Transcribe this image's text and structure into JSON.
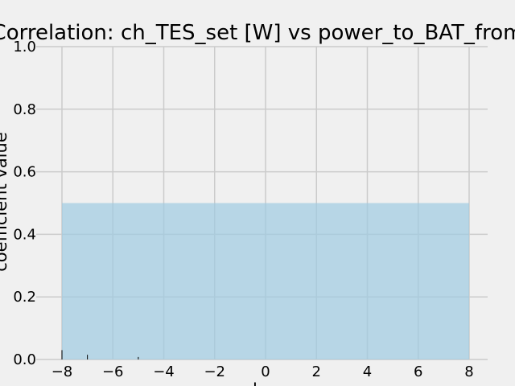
{
  "chart_data": {
    "type": "area",
    "title": "Correlation: ch_TES_set [W] vs power_to_BAT_from",
    "xlabel": "lag",
    "ylabel": "coefficient value",
    "xlim": [
      -8,
      8
    ],
    "ylim": [
      0,
      1
    ],
    "grid": true,
    "x_ticks": [
      "−8",
      "−6",
      "−4",
      "−2",
      "0",
      "2",
      "4",
      "6",
      "8"
    ],
    "y_ticks": [
      "0.0",
      "0.2",
      "0.4",
      "0.6",
      "0.8",
      "1.0"
    ],
    "series": [
      {
        "x": [
          -8,
          8
        ],
        "y": [
          0.5,
          0.5
        ],
        "color": "#9ecae1"
      }
    ],
    "spikes": [
      {
        "x": -8,
        "y": 0.03
      },
      {
        "x": -7,
        "y": 0.015
      },
      {
        "x": -5,
        "y": 0.008
      }
    ]
  }
}
